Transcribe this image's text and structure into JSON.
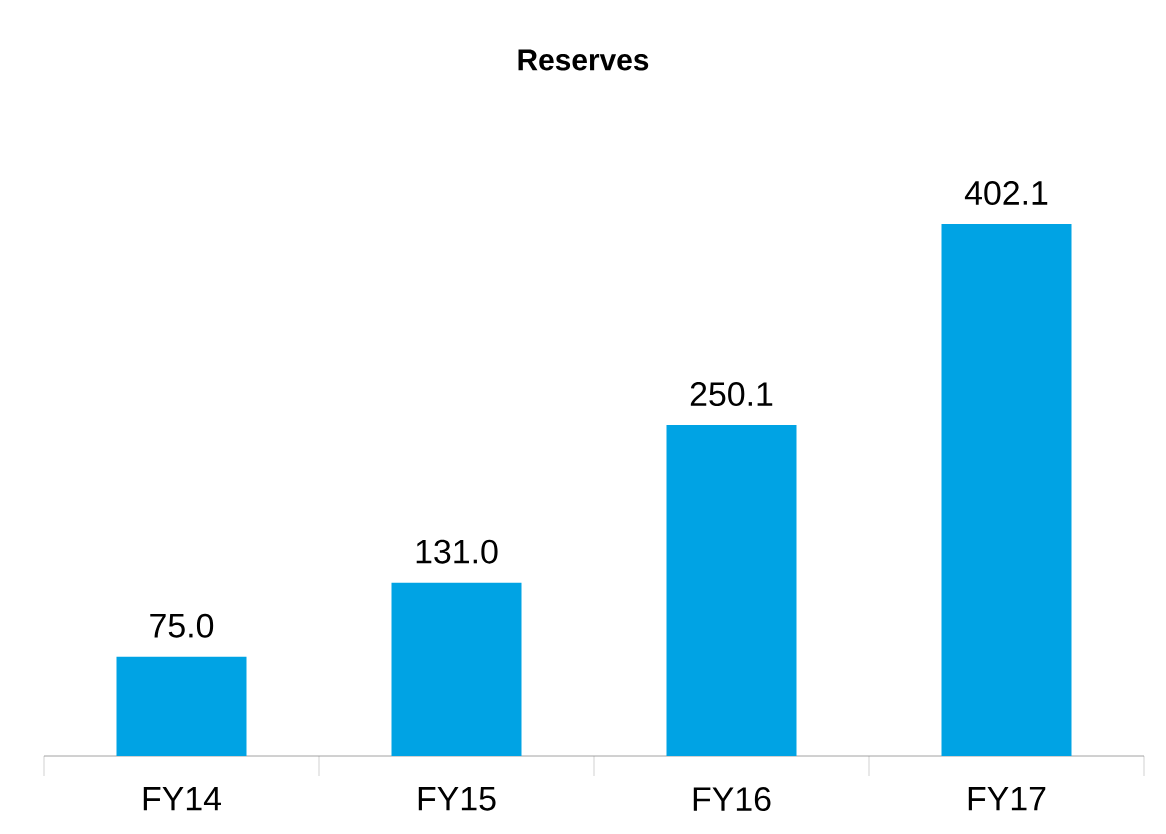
{
  "chart_data": {
    "type": "bar",
    "title": "Reserves",
    "categories": [
      "FY14",
      "FY15",
      "FY16",
      "FY17"
    ],
    "values": [
      75.0,
      131.0,
      250.1,
      402.1
    ],
    "value_labels": [
      "75.0",
      "131.0",
      "250.1",
      "402.1"
    ],
    "color": "#00a3e4"
  }
}
